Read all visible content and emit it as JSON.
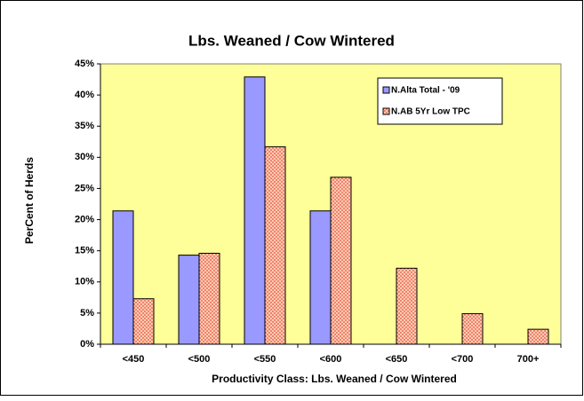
{
  "chart_data": {
    "type": "bar",
    "title": "Lbs. Weaned / Cow Wintered",
    "x_label": "Productivity Class: Lbs. Weaned / Cow Wintered",
    "y_label": "PerCent of Herds",
    "categories": [
      "<450",
      "<500",
      "<550",
      "<600",
      "<650",
      "<700",
      "700+"
    ],
    "series": [
      {
        "name": "N.Alta Total - '09",
        "color": "#9999ff",
        "values": [
          21.4,
          14.3,
          42.9,
          21.4,
          0,
          0,
          0
        ]
      },
      {
        "name": "N.AB 5Yr Low TPC",
        "color": "#ffccaa",
        "pattern_color": "#e05050",
        "values": [
          7.3,
          14.6,
          31.7,
          26.8,
          12.2,
          4.9,
          2.4
        ]
      }
    ],
    "ylim": [
      0,
      45
    ],
    "yticks": [
      {
        "value": 0,
        "label": "0%"
      },
      {
        "value": 5,
        "label": "5%"
      },
      {
        "value": 10,
        "label": "10%"
      },
      {
        "value": 15,
        "label": "15%"
      },
      {
        "value": 20,
        "label": "20%"
      },
      {
        "value": 25,
        "label": "25%"
      },
      {
        "value": 30,
        "label": "30%"
      },
      {
        "value": 35,
        "label": "35%"
      },
      {
        "value": 40,
        "label": "40%"
      },
      {
        "value": 45,
        "label": "45%"
      }
    ],
    "grid": false,
    "plot_background": "#ffff99",
    "legend_position": "top-right"
  }
}
